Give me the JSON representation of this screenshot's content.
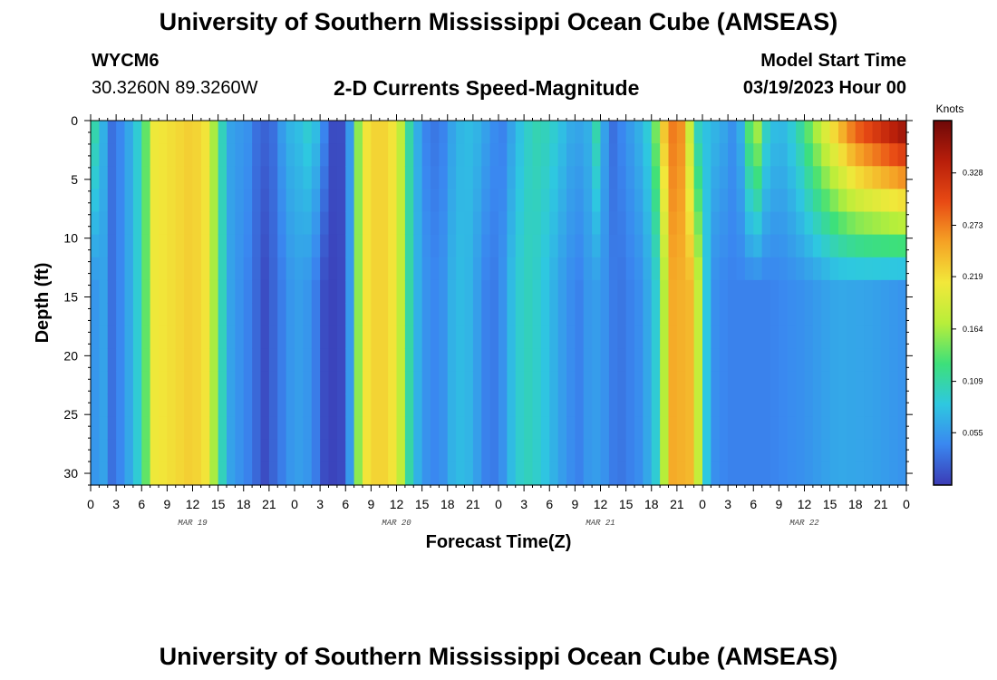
{
  "header": {
    "title": "University of Southern Mississippi Ocean Cube (AMSEAS)",
    "station": "WYCM6",
    "coords": "30.3260N  89.3260W",
    "product": "2-D Currents Speed-Magnitude",
    "start_label": "Model Start Time",
    "start_value": "03/19/2023 Hour 00"
  },
  "footer": {
    "title": "University of Southern Mississippi Ocean Cube (AMSEAS)"
  },
  "chart_data": {
    "type": "heatmap",
    "title": "2-D Currents Speed-Magnitude",
    "xlabel": "Forecast Time(Z)",
    "ylabel": "Depth (ft)",
    "xlim": [
      0,
      96
    ],
    "ylim": [
      31,
      0
    ],
    "x_tick_labels": [
      "0",
      "3",
      "6",
      "9",
      "12",
      "15",
      "18",
      "21",
      "0",
      "3",
      "6",
      "9",
      "12",
      "15",
      "18",
      "21",
      "0",
      "3",
      "6",
      "9",
      "12",
      "15",
      "18",
      "21",
      "0",
      "3",
      "6",
      "9",
      "12",
      "15",
      "18",
      "21",
      "0"
    ],
    "day_labels": [
      {
        "hour": 12,
        "label": "MAR 19"
      },
      {
        "hour": 36,
        "label": "MAR 20"
      },
      {
        "hour": 60,
        "label": "MAR 21"
      },
      {
        "hour": 84,
        "label": "MAR 22"
      }
    ],
    "y_ticks": [
      0,
      5,
      10,
      15,
      20,
      25,
      30
    ],
    "colorbar": {
      "unit": "Knots",
      "min": 0.0,
      "max": 0.383,
      "tick_values": [
        0.055,
        0.109,
        0.164,
        0.219,
        0.273,
        0.328
      ],
      "tick_labels": [
        "0.055",
        "0.109",
        "0.164",
        "0.219",
        "0.273",
        "0.328"
      ],
      "colormap": [
        "#3b3bb5",
        "#3a87f0",
        "#2ec8e0",
        "#3de07a",
        "#b8ee3a",
        "#f2e83a",
        "#f5a225",
        "#e84a14",
        "#b81e0a",
        "#6e0808"
      ]
    },
    "surface_speed_by_hour": [
      {
        "hour": 0,
        "value": 0.08
      },
      {
        "hour": 0.5,
        "value": 0.11
      },
      {
        "hour": 1.5,
        "value": 0.07
      },
      {
        "hour": 2.5,
        "value": 0.03
      },
      {
        "hour": 4,
        "value": 0.05
      },
      {
        "hour": 5.5,
        "value": 0.09
      },
      {
        "hour": 6.5,
        "value": 0.14
      },
      {
        "hour": 7.5,
        "value": 0.21
      },
      {
        "hour": 12,
        "value": 0.23
      },
      {
        "hour": 14,
        "value": 0.21
      },
      {
        "hour": 15,
        "value": 0.12
      },
      {
        "hour": 16.5,
        "value": 0.06
      },
      {
        "hour": 18.5,
        "value": 0.05
      },
      {
        "hour": 20,
        "value": 0.02
      },
      {
        "hour": 21.5,
        "value": 0.03
      },
      {
        "hour": 23,
        "value": 0.07
      },
      {
        "hour": 24.5,
        "value": 0.08
      },
      {
        "hour": 26,
        "value": 0.1
      },
      {
        "hour": 27,
        "value": 0.06
      },
      {
        "hour": 28.5,
        "value": 0.01
      },
      {
        "hour": 30,
        "value": 0.01
      },
      {
        "hour": 31,
        "value": 0.1
      },
      {
        "hour": 32,
        "value": 0.21
      },
      {
        "hour": 34,
        "value": 0.23
      },
      {
        "hour": 36,
        "value": 0.21
      },
      {
        "hour": 37,
        "value": 0.14
      },
      {
        "hour": 38,
        "value": 0.08
      },
      {
        "hour": 39.5,
        "value": 0.04
      },
      {
        "hour": 41,
        "value": 0.03
      },
      {
        "hour": 42.5,
        "value": 0.06
      },
      {
        "hour": 44,
        "value": 0.08
      },
      {
        "hour": 46,
        "value": 0.07
      },
      {
        "hour": 47,
        "value": 0.05
      },
      {
        "hour": 48.5,
        "value": 0.04
      },
      {
        "hour": 50,
        "value": 0.07
      },
      {
        "hour": 51,
        "value": 0.09
      },
      {
        "hour": 52.5,
        "value": 0.105
      },
      {
        "hour": 54,
        "value": 0.1
      },
      {
        "hour": 55.5,
        "value": 0.08
      },
      {
        "hour": 57,
        "value": 0.06
      },
      {
        "hour": 58.5,
        "value": 0.07
      },
      {
        "hour": 59.5,
        "value": 0.11
      },
      {
        "hour": 60.5,
        "value": 0.06
      },
      {
        "hour": 61.5,
        "value": 0.03
      },
      {
        "hour": 63,
        "value": 0.05
      },
      {
        "hour": 64.5,
        "value": 0.07
      },
      {
        "hour": 65.5,
        "value": 0.09
      },
      {
        "hour": 66.5,
        "value": 0.15
      },
      {
        "hour": 68,
        "value": 0.28
      },
      {
        "hour": 70,
        "value": 0.26
      },
      {
        "hour": 71,
        "value": 0.1
      },
      {
        "hour": 72.5,
        "value": 0.08
      },
      {
        "hour": 74,
        "value": 0.07
      },
      {
        "hour": 75.5,
        "value": 0.05
      },
      {
        "hour": 76.5,
        "value": 0.07
      },
      {
        "hour": 77.5,
        "value": 0.14
      },
      {
        "hour": 78.5,
        "value": 0.17
      },
      {
        "hour": 79.5,
        "value": 0.1
      },
      {
        "hour": 81,
        "value": 0.07
      },
      {
        "hour": 83,
        "value": 0.1
      },
      {
        "hour": 85,
        "value": 0.16
      },
      {
        "hour": 87,
        "value": 0.22
      },
      {
        "hour": 90,
        "value": 0.3
      },
      {
        "hour": 96,
        "value": 0.38
      }
    ],
    "deep_speed_by_hour": [
      {
        "hour": 0,
        "value": 0.05
      },
      {
        "hour": 1.5,
        "value": 0.06
      },
      {
        "hour": 2.5,
        "value": 0.03
      },
      {
        "hour": 4,
        "value": 0.05
      },
      {
        "hour": 5.5,
        "value": 0.09
      },
      {
        "hour": 6.5,
        "value": 0.14
      },
      {
        "hour": 7.5,
        "value": 0.21
      },
      {
        "hour": 12,
        "value": 0.23
      },
      {
        "hour": 14,
        "value": 0.21
      },
      {
        "hour": 15,
        "value": 0.12
      },
      {
        "hour": 16.5,
        "value": 0.06
      },
      {
        "hour": 18.5,
        "value": 0.04
      },
      {
        "hour": 20.5,
        "value": 0.01
      },
      {
        "hour": 22,
        "value": 0.03
      },
      {
        "hour": 24,
        "value": 0.06
      },
      {
        "hour": 26,
        "value": 0.05
      },
      {
        "hour": 27.5,
        "value": 0.01
      },
      {
        "hour": 28.5,
        "value": 0.005
      },
      {
        "hour": 30,
        "value": 0.01
      },
      {
        "hour": 31,
        "value": 0.1
      },
      {
        "hour": 32,
        "value": 0.21
      },
      {
        "hour": 34,
        "value": 0.23
      },
      {
        "hour": 36,
        "value": 0.21
      },
      {
        "hour": 37,
        "value": 0.14
      },
      {
        "hour": 38,
        "value": 0.08
      },
      {
        "hour": 39.5,
        "value": 0.05
      },
      {
        "hour": 41,
        "value": 0.04
      },
      {
        "hour": 42.5,
        "value": 0.07
      },
      {
        "hour": 44,
        "value": 0.08
      },
      {
        "hour": 46,
        "value": 0.05
      },
      {
        "hour": 47,
        "value": 0.03
      },
      {
        "hour": 48.5,
        "value": 0.05
      },
      {
        "hour": 50,
        "value": 0.09
      },
      {
        "hour": 51.5,
        "value": 0.1
      },
      {
        "hour": 53,
        "value": 0.09
      },
      {
        "hour": 54.5,
        "value": 0.07
      },
      {
        "hour": 56,
        "value": 0.05
      },
      {
        "hour": 57.5,
        "value": 0.04
      },
      {
        "hour": 59,
        "value": 0.06
      },
      {
        "hour": 60.5,
        "value": 0.05
      },
      {
        "hour": 62,
        "value": 0.03
      },
      {
        "hour": 63.5,
        "value": 0.04
      },
      {
        "hour": 65,
        "value": 0.05
      },
      {
        "hour": 66.5,
        "value": 0.09
      },
      {
        "hour": 67.5,
        "value": 0.17
      },
      {
        "hour": 68.5,
        "value": 0.25
      },
      {
        "hour": 71,
        "value": 0.24
      },
      {
        "hour": 72,
        "value": 0.12
      },
      {
        "hour": 73,
        "value": 0.05
      },
      {
        "hour": 75,
        "value": 0.04
      },
      {
        "hour": 80,
        "value": 0.04
      },
      {
        "hour": 84,
        "value": 0.05
      },
      {
        "hour": 88,
        "value": 0.065
      },
      {
        "hour": 92,
        "value": 0.06
      },
      {
        "hour": 96,
        "value": 0.05
      }
    ]
  }
}
